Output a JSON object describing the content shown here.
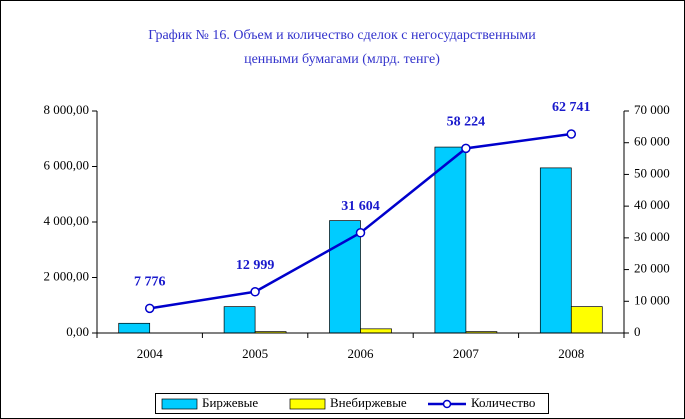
{
  "chart_data": {
    "type": "bar",
    "title": [
      "График № 16. Объем и количество сделок с негосударственными",
      "ценными бумагами (млрд. тенге)"
    ],
    "categories": [
      "2004",
      "2005",
      "2006",
      "2007",
      "2008"
    ],
    "series": [
      {
        "name": "Биржевые",
        "color": "#00ccff",
        "values": [
          350,
          950,
          4050,
          6700,
          5950
        ]
      },
      {
        "name": "Внебиржевые",
        "color": "#ffff00",
        "values": [
          5,
          50,
          150,
          50,
          950
        ]
      },
      {
        "name": "Количество",
        "color": "#0000cc",
        "type": "line",
        "axis": "y2",
        "values": [
          7776,
          12999,
          31604,
          58224,
          62741
        ],
        "value_labels": [
          "7 776",
          "12 999",
          "31 604",
          "58 224",
          "62 741"
        ]
      }
    ],
    "ylim": [
      0,
      8000
    ],
    "yticks": [
      {
        "value": 0,
        "label": "0,00"
      },
      {
        "value": 2000,
        "label": "2 000,00"
      },
      {
        "value": 4000,
        "label": "4 000,00"
      },
      {
        "value": 6000,
        "label": "6 000,00"
      },
      {
        "value": 8000,
        "label": "8 000,00"
      }
    ],
    "y2lim": [
      0,
      70000
    ],
    "y2ticks": [
      0,
      {
        "value": 10000,
        "label": "10 000"
      },
      {
        "value": 20000,
        "label": "20 000"
      },
      {
        "value": 30000,
        "label": "30 000"
      },
      {
        "value": 40000,
        "label": "40 000"
      },
      {
        "value": 50000,
        "label": "50 000"
      },
      {
        "value": 60000,
        "label": "60 000"
      },
      {
        "value": 70000,
        "label": "70 000"
      }
    ],
    "legend": "bottom"
  }
}
